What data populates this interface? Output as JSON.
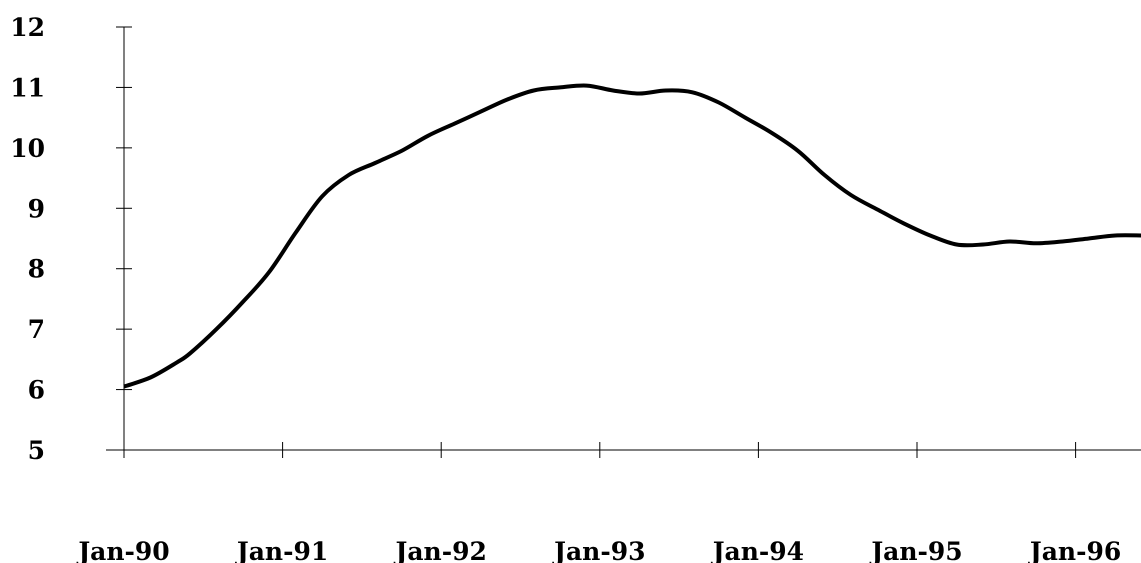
{
  "chart_data": {
    "type": "line",
    "title": "",
    "xlabel": "",
    "ylabel": "",
    "ylim": [
      5,
      12
    ],
    "grid": false,
    "legend": "none",
    "line_color": "#000000",
    "y_ticks": [
      5,
      6,
      7,
      8,
      9,
      10,
      11,
      12
    ],
    "y_tick_labels": [
      "5",
      "6",
      "7",
      "8",
      "9",
      "10",
      "11",
      "12"
    ],
    "x_ticks": [
      "1990-01",
      "1991-01",
      "1992-01",
      "1993-01",
      "1994-01",
      "1995-01",
      "1996-01"
    ],
    "x_tick_labels": [
      "Jan-90",
      "Jan-91",
      "Jan-92",
      "Jan-93",
      "Jan-94",
      "Jan-95",
      "Jan-96"
    ],
    "series": [
      {
        "points": [
          {
            "x": "1990-01",
            "y": 6.05
          },
          {
            "x": "1990-03",
            "y": 6.2
          },
          {
            "x": "1990-05",
            "y": 6.45
          },
          {
            "x": "1990-06",
            "y": 6.6
          },
          {
            "x": "1990-08",
            "y": 7.0
          },
          {
            "x": "1990-10",
            "y": 7.45
          },
          {
            "x": "1990-12",
            "y": 7.95
          },
          {
            "x": "1991-02",
            "y": 8.6
          },
          {
            "x": "1991-04",
            "y": 9.2
          },
          {
            "x": "1991-06",
            "y": 9.55
          },
          {
            "x": "1991-08",
            "y": 9.75
          },
          {
            "x": "1991-10",
            "y": 9.95
          },
          {
            "x": "1991-12",
            "y": 10.2
          },
          {
            "x": "1992-02",
            "y": 10.4
          },
          {
            "x": "1992-04",
            "y": 10.6
          },
          {
            "x": "1992-06",
            "y": 10.8
          },
          {
            "x": "1992-08",
            "y": 10.95
          },
          {
            "x": "1992-10",
            "y": 11.0
          },
          {
            "x": "1992-12",
            "y": 11.03
          },
          {
            "x": "1993-02",
            "y": 10.95
          },
          {
            "x": "1993-04",
            "y": 10.9
          },
          {
            "x": "1993-06",
            "y": 10.95
          },
          {
            "x": "1993-08",
            "y": 10.92
          },
          {
            "x": "1993-10",
            "y": 10.75
          },
          {
            "x": "1993-12",
            "y": 10.5
          },
          {
            "x": "1994-02",
            "y": 10.25
          },
          {
            "x": "1994-04",
            "y": 9.95
          },
          {
            "x": "1994-06",
            "y": 9.55
          },
          {
            "x": "1994-08",
            "y": 9.22
          },
          {
            "x": "1994-10",
            "y": 8.98
          },
          {
            "x": "1994-12",
            "y": 8.75
          },
          {
            "x": "1995-02",
            "y": 8.55
          },
          {
            "x": "1995-04",
            "y": 8.4
          },
          {
            "x": "1995-06",
            "y": 8.4
          },
          {
            "x": "1995-08",
            "y": 8.45
          },
          {
            "x": "1995-10",
            "y": 8.42
          },
          {
            "x": "1995-12",
            "y": 8.45
          },
          {
            "x": "1996-02",
            "y": 8.5
          },
          {
            "x": "1996-04",
            "y": 8.55
          },
          {
            "x": "1996-06",
            "y": 8.55
          }
        ]
      }
    ]
  }
}
